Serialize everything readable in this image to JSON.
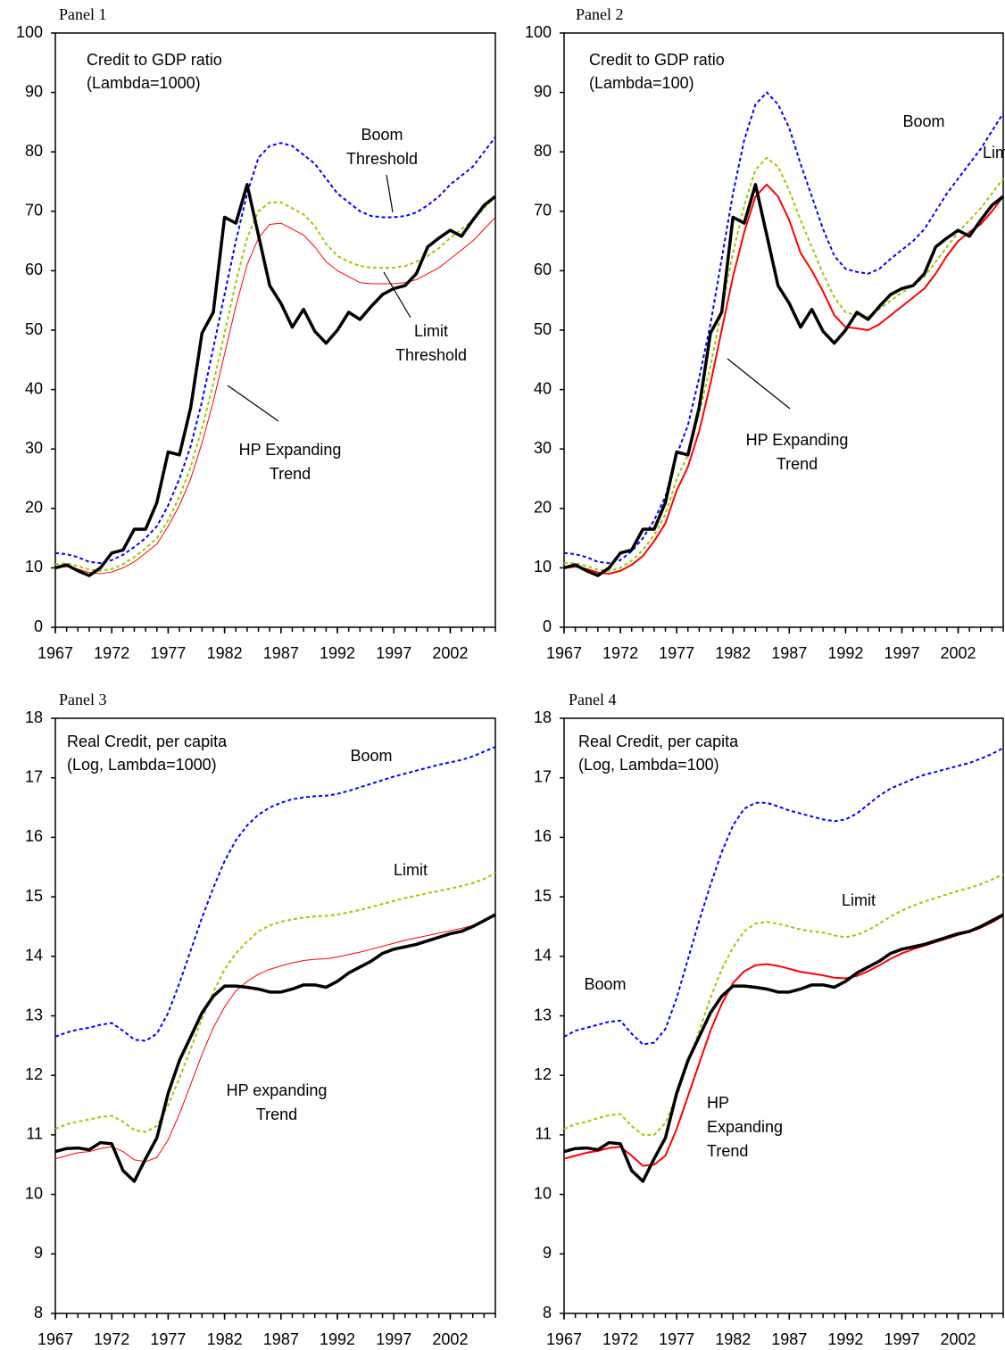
{
  "chart_data": [
    {
      "type": "line",
      "panel": "Panel 1",
      "title": "Credit to GDP ratio",
      "subtitle": "(Lambda=1000)",
      "x": [
        1967,
        1968,
        1969,
        1970,
        1971,
        1972,
        1973,
        1974,
        1975,
        1976,
        1977,
        1978,
        1979,
        1980,
        1981,
        1982,
        1983,
        1984,
        1985,
        1986,
        1987,
        1988,
        1989,
        1990,
        1991,
        1992,
        1993,
        1994,
        1995,
        1996,
        1997,
        1998,
        1999,
        2000,
        2001,
        2002,
        2003,
        2004,
        2005,
        2006
      ],
      "xlim": [
        1967,
        2006
      ],
      "xticks": [
        1967,
        1972,
        1977,
        1982,
        1987,
        1992,
        1997,
        2002
      ],
      "ylim": [
        0,
        100
      ],
      "yticks": [
        0,
        10,
        20,
        30,
        40,
        50,
        60,
        70,
        80,
        90,
        100
      ],
      "series": [
        {
          "color": "#0000ff",
          "dashed": true,
          "line_width": 2,
          "values": [
            12.5,
            12.3,
            11.8,
            11,
            10.8,
            11.3,
            12.2,
            13.5,
            15,
            17,
            20.5,
            25,
            30.5,
            38,
            47,
            56,
            65,
            73,
            79,
            81,
            81.5,
            81,
            79.5,
            78,
            75.5,
            73,
            71.5,
            70,
            69.2,
            69,
            69,
            69.2,
            69.8,
            71,
            72.5,
            74.5,
            76,
            77.5,
            80,
            82.5
          ]
        },
        {
          "color": "#99cc00",
          "dashed": true,
          "line_width": 2,
          "values": [
            10.6,
            10.8,
            10.3,
            9.7,
            9.5,
            9.8,
            10.6,
            11.8,
            13.3,
            15,
            18,
            22,
            27,
            33.5,
            41,
            49.5,
            58,
            65.5,
            70,
            71.5,
            71.5,
            70.5,
            69.5,
            67.5,
            64.5,
            62.5,
            61.5,
            60.8,
            60.5,
            60.5,
            60.5,
            60.8,
            61.5,
            62.5,
            63.8,
            65.5,
            67,
            68.5,
            70.5,
            72.5
          ]
        },
        {
          "color": "#ff0000",
          "dashed": false,
          "line_width": 1,
          "values": [
            10,
            10.2,
            9.8,
            9.2,
            9,
            9.3,
            10,
            11,
            12.5,
            14,
            17,
            20.5,
            25,
            31,
            38,
            46,
            54,
            61,
            65.5,
            67.8,
            68,
            67,
            66,
            64,
            61.5,
            60,
            59,
            58,
            57.8,
            57.8,
            57.8,
            58,
            58.5,
            59.5,
            60.5,
            62,
            63.5,
            65,
            67,
            69
          ]
        },
        {
          "color": "#000000",
          "dashed": false,
          "line_width": 3.5,
          "values": [
            10,
            10.5,
            9.5,
            8.7,
            10,
            12.5,
            13,
            16.5,
            16.5,
            21,
            29.5,
            29,
            37,
            49.5,
            53,
            69,
            68,
            74.5,
            66,
            57.5,
            54.5,
            50.5,
            53.5,
            49.8,
            47.8,
            50,
            53,
            51.8,
            54,
            56,
            57,
            57.5,
            59.5,
            64,
            65.5,
            66.8,
            65.8,
            68.5,
            71,
            72.5
          ]
        }
      ],
      "annotations": [
        {
          "lines": [
            "Boom",
            "Threshold"
          ]
        },
        {
          "lines": [
            "Limit",
            "Threshold"
          ]
        },
        {
          "lines": [
            "HP Expanding",
            "Trend"
          ]
        }
      ]
    },
    {
      "type": "line",
      "panel": "Panel 2",
      "title": "Credit to GDP ratio",
      "subtitle": "(Lambda=100)",
      "x": [
        1967,
        1968,
        1969,
        1970,
        1971,
        1972,
        1973,
        1974,
        1975,
        1976,
        1977,
        1978,
        1979,
        1980,
        1981,
        1982,
        1983,
        1984,
        1985,
        1986,
        1987,
        1988,
        1989,
        1990,
        1991,
        1992,
        1993,
        1994,
        1995,
        1996,
        1997,
        1998,
        1999,
        2000,
        2001,
        2002,
        2003,
        2004,
        2005,
        2006
      ],
      "xlim": [
        1967,
        2006
      ],
      "xticks": [
        1967,
        1972,
        1977,
        1982,
        1987,
        1992,
        1997,
        2002
      ],
      "ylim": [
        0,
        100
      ],
      "yticks": [
        0,
        10,
        20,
        30,
        40,
        50,
        60,
        70,
        80,
        90,
        100
      ],
      "series": [
        {
          "color": "#0000ff",
          "dashed": true,
          "line_width": 2,
          "values": [
            12.5,
            12.3,
            11.8,
            11,
            10.8,
            11.3,
            12.8,
            15,
            18,
            22,
            29,
            34,
            42,
            51,
            62,
            73,
            82,
            88,
            90,
            88,
            84,
            78,
            72.5,
            67,
            62.5,
            60.3,
            59.8,
            59.5,
            60.3,
            62,
            63.5,
            65,
            67,
            70,
            73,
            75.5,
            78,
            80.5,
            83.5,
            86.5
          ]
        },
        {
          "color": "#99cc00",
          "dashed": true,
          "line_width": 2,
          "values": [
            10.8,
            10.8,
            10.3,
            9.7,
            9.5,
            10,
            11.2,
            13,
            15.5,
            19,
            25,
            29,
            36,
            44,
            53.5,
            63,
            71,
            77,
            79,
            77.5,
            73.5,
            68.5,
            64,
            59.5,
            55.5,
            53,
            52.5,
            52.3,
            53.5,
            55,
            56.3,
            57.5,
            59,
            61.5,
            64,
            66.5,
            68.5,
            70.5,
            73,
            75.5
          ]
        },
        {
          "color": "#ff0000",
          "dashed": false,
          "line_width": 2,
          "values": [
            10,
            10.2,
            9.8,
            9.2,
            9,
            9.5,
            10.5,
            12,
            14.5,
            17.5,
            23,
            27,
            33,
            41,
            50,
            59,
            66.5,
            72.5,
            74.5,
            72.5,
            68.5,
            63,
            60,
            56.5,
            52.5,
            50.5,
            50.3,
            50,
            51,
            52.5,
            54,
            55.5,
            57,
            59.5,
            62.5,
            65,
            66.5,
            67.8,
            70,
            72.5
          ]
        },
        {
          "color": "#000000",
          "dashed": false,
          "line_width": 3.5,
          "values": [
            10,
            10.5,
            9.5,
            8.7,
            10,
            12.5,
            13,
            16.5,
            16.5,
            21,
            29.5,
            29,
            37,
            49.5,
            53,
            69,
            68,
            74.5,
            66,
            57.5,
            54.5,
            50.5,
            53.5,
            49.8,
            47.8,
            50,
            53,
            51.8,
            54,
            56,
            57,
            57.5,
            59.5,
            64,
            65.5,
            66.8,
            65.8,
            68.5,
            71,
            72.5
          ]
        }
      ],
      "annotations": [
        {
          "lines": [
            "Boom"
          ]
        },
        {
          "lines": [
            "Limit"
          ]
        },
        {
          "lines": [
            "HP Expanding",
            "Trend"
          ]
        }
      ]
    },
    {
      "type": "line",
      "panel": "Panel 3",
      "title": "Real Credit, per capita",
      "subtitle": "(Log, Lambda=1000)",
      "x": [
        1967,
        1968,
        1969,
        1970,
        1971,
        1972,
        1973,
        1974,
        1975,
        1976,
        1977,
        1978,
        1979,
        1980,
        1981,
        1982,
        1983,
        1984,
        1985,
        1986,
        1987,
        1988,
        1989,
        1990,
        1991,
        1992,
        1993,
        1994,
        1995,
        1996,
        1997,
        1998,
        1999,
        2000,
        2001,
        2002,
        2003,
        2004,
        2005,
        2006
      ],
      "xlim": [
        1967,
        2006
      ],
      "xticks": [
        1967,
        1972,
        1977,
        1982,
        1987,
        1992,
        1997,
        2002
      ],
      "ylim": [
        8,
        18
      ],
      "yticks": [
        8,
        9,
        10,
        11,
        12,
        13,
        14,
        15,
        16,
        17,
        18
      ],
      "series": [
        {
          "color": "#0000ff",
          "dashed": true,
          "line_width": 2,
          "values": [
            12.65,
            12.72,
            12.77,
            12.8,
            12.85,
            12.88,
            12.75,
            12.6,
            12.58,
            12.7,
            13.05,
            13.55,
            14.1,
            14.65,
            15.15,
            15.6,
            15.95,
            16.2,
            16.38,
            16.5,
            16.58,
            16.64,
            16.67,
            16.69,
            16.7,
            16.73,
            16.78,
            16.84,
            16.9,
            16.96,
            17.02,
            17.07,
            17.12,
            17.17,
            17.22,
            17.26,
            17.3,
            17.36,
            17.44,
            17.52
          ]
        },
        {
          "color": "#99cc00",
          "dashed": true,
          "line_width": 2,
          "values": [
            11.1,
            11.18,
            11.22,
            11.26,
            11.3,
            11.32,
            11.22,
            11.08,
            11.05,
            11.15,
            11.5,
            11.95,
            12.45,
            12.95,
            13.4,
            13.78,
            14.05,
            14.25,
            14.42,
            14.52,
            14.58,
            14.62,
            14.65,
            14.67,
            14.68,
            14.7,
            14.74,
            14.78,
            14.83,
            14.88,
            14.93,
            14.98,
            15.02,
            15.06,
            15.1,
            15.14,
            15.18,
            15.23,
            15.3,
            15.4
          ]
        },
        {
          "color": "#ff0000",
          "dashed": false,
          "line_width": 1,
          "values": [
            10.6,
            10.65,
            10.7,
            10.72,
            10.77,
            10.8,
            10.72,
            10.58,
            10.55,
            10.62,
            10.92,
            11.35,
            11.85,
            12.35,
            12.8,
            13.15,
            13.42,
            13.58,
            13.7,
            13.78,
            13.84,
            13.89,
            13.93,
            13.95,
            13.96,
            13.99,
            14.03,
            14.07,
            14.12,
            14.17,
            14.22,
            14.27,
            14.31,
            14.35,
            14.39,
            14.43,
            14.47,
            14.52,
            14.6,
            14.7
          ]
        },
        {
          "color": "#000000",
          "dashed": false,
          "line_width": 3.5,
          "values": [
            10.72,
            10.77,
            10.78,
            10.75,
            10.87,
            10.85,
            10.4,
            10.22,
            10.6,
            10.95,
            11.7,
            12.25,
            12.65,
            13.05,
            13.33,
            13.5,
            13.5,
            13.48,
            13.45,
            13.4,
            13.4,
            13.45,
            13.52,
            13.52,
            13.48,
            13.58,
            13.72,
            13.82,
            13.92,
            14.05,
            14.12,
            14.16,
            14.2,
            14.26,
            14.32,
            14.38,
            14.42,
            14.5,
            14.6,
            14.7
          ]
        }
      ],
      "annotations": [
        {
          "lines": [
            "Boom"
          ]
        },
        {
          "lines": [
            "Limit"
          ]
        },
        {
          "lines": [
            "HP expanding",
            "Trend"
          ]
        }
      ]
    },
    {
      "type": "line",
      "panel": "Panel 4",
      "title": "Real Credit, per capita",
      "subtitle": "(Log, Lambda=100)",
      "x": [
        1967,
        1968,
        1969,
        1970,
        1971,
        1972,
        1973,
        1974,
        1975,
        1976,
        1977,
        1978,
        1979,
        1980,
        1981,
        1982,
        1983,
        1984,
        1985,
        1986,
        1987,
        1988,
        1989,
        1990,
        1991,
        1992,
        1993,
        1994,
        1995,
        1996,
        1997,
        1998,
        1999,
        2000,
        2001,
        2002,
        2003,
        2004,
        2005,
        2006
      ],
      "xlim": [
        1967,
        2006
      ],
      "xticks": [
        1967,
        1972,
        1977,
        1982,
        1987,
        1992,
        1997,
        2002
      ],
      "ylim": [
        8,
        18
      ],
      "yticks": [
        8,
        9,
        10,
        11,
        12,
        13,
        14,
        15,
        16,
        17,
        18
      ],
      "series": [
        {
          "color": "#0000ff",
          "dashed": true,
          "line_width": 2,
          "values": [
            12.65,
            12.75,
            12.8,
            12.85,
            12.9,
            12.92,
            12.7,
            12.52,
            12.55,
            12.78,
            13.3,
            13.95,
            14.6,
            15.2,
            15.75,
            16.2,
            16.48,
            16.58,
            16.58,
            16.52,
            16.45,
            16.4,
            16.35,
            16.3,
            16.27,
            16.3,
            16.4,
            16.55,
            16.7,
            16.82,
            16.9,
            16.98,
            17.05,
            17.1,
            17.15,
            17.2,
            17.25,
            17.32,
            17.4,
            17.5
          ]
        },
        {
          "color": "#99cc00",
          "dashed": true,
          "line_width": 2,
          "values": [
            11.1,
            11.18,
            11.22,
            11.28,
            11.33,
            11.35,
            11.15,
            11,
            11,
            11.2,
            11.65,
            12.2,
            12.75,
            13.3,
            13.78,
            14.15,
            14.42,
            14.55,
            14.58,
            14.55,
            14.5,
            14.45,
            14.42,
            14.4,
            14.35,
            14.32,
            14.36,
            14.44,
            14.55,
            14.67,
            14.77,
            14.85,
            14.92,
            14.98,
            15.04,
            15.1,
            15.15,
            15.21,
            15.29,
            15.38
          ]
        },
        {
          "color": "#ff0000",
          "dashed": false,
          "line_width": 2,
          "values": [
            10.6,
            10.65,
            10.7,
            10.73,
            10.78,
            10.8,
            10.65,
            10.48,
            10.5,
            10.65,
            11.1,
            11.65,
            12.2,
            12.75,
            13.2,
            13.55,
            13.75,
            13.85,
            13.87,
            13.84,
            13.79,
            13.74,
            13.71,
            13.68,
            13.64,
            13.63,
            13.67,
            13.75,
            13.85,
            13.96,
            14.05,
            14.12,
            14.18,
            14.24,
            14.3,
            14.36,
            14.41,
            14.48,
            14.57,
            14.68
          ]
        },
        {
          "color": "#000000",
          "dashed": false,
          "line_width": 3.5,
          "values": [
            10.72,
            10.77,
            10.78,
            10.75,
            10.87,
            10.85,
            10.4,
            10.22,
            10.6,
            10.95,
            11.7,
            12.25,
            12.65,
            13.05,
            13.33,
            13.5,
            13.5,
            13.48,
            13.45,
            13.4,
            13.4,
            13.45,
            13.52,
            13.52,
            13.48,
            13.58,
            13.72,
            13.82,
            13.92,
            14.05,
            14.12,
            14.16,
            14.2,
            14.26,
            14.32,
            14.38,
            14.42,
            14.5,
            14.6,
            14.7
          ]
        }
      ],
      "annotations": [
        {
          "lines": [
            "Limit"
          ]
        },
        {
          "lines": [
            "Boom"
          ]
        },
        {
          "lines": [
            "HP",
            "Expanding",
            "Trend"
          ]
        }
      ]
    }
  ]
}
